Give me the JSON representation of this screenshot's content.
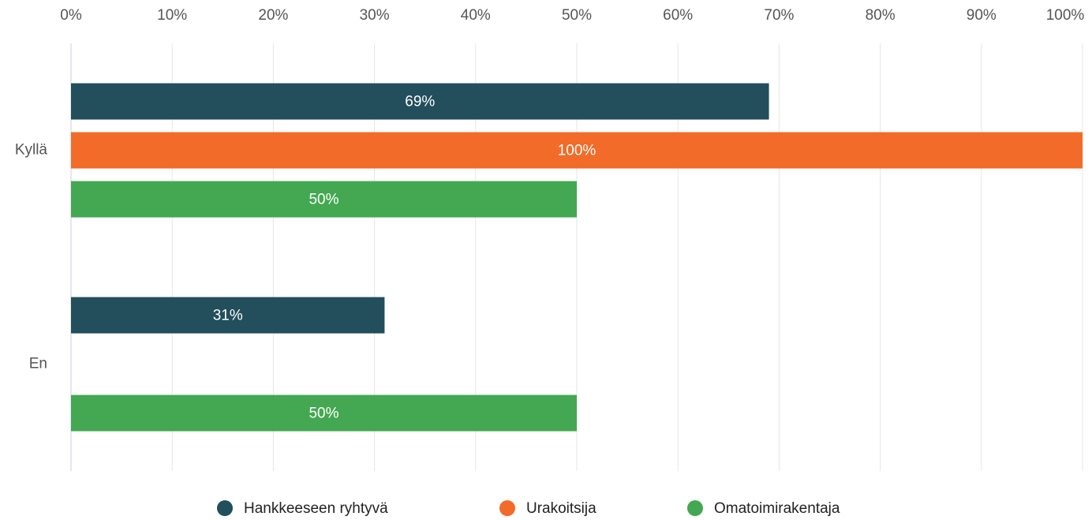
{
  "chart_data": {
    "type": "bar",
    "orientation": "horizontal",
    "categories": [
      "Kyllä",
      "En"
    ],
    "series": [
      {
        "name": "Hankkeeseen ryhtyvä",
        "color": "#234e5c",
        "values": [
          69,
          31
        ],
        "value_labels": [
          "69%",
          "31%"
        ]
      },
      {
        "name": "Urakoitsija",
        "color": "#f26b28",
        "values": [
          100,
          null
        ],
        "value_labels": [
          "100%",
          null
        ]
      },
      {
        "name": "Omatoimirakentaja",
        "color": "#43a851",
        "values": [
          50,
          50
        ],
        "value_labels": [
          "50%",
          "50%"
        ]
      }
    ],
    "xlim": [
      0,
      100
    ],
    "xticks": [
      {
        "value": 0,
        "label": "0%"
      },
      {
        "value": 10,
        "label": "10%"
      },
      {
        "value": 20,
        "label": "20%"
      },
      {
        "value": 30,
        "label": "30%"
      },
      {
        "value": 40,
        "label": "40%"
      },
      {
        "value": 50,
        "label": "50%"
      },
      {
        "value": 60,
        "label": "60%"
      },
      {
        "value": 70,
        "label": "70%"
      },
      {
        "value": 80,
        "label": "80%"
      },
      {
        "value": 90,
        "label": "90%"
      },
      {
        "value": 100,
        "label": "100%"
      }
    ],
    "grid": true,
    "legend": "bottom"
  }
}
